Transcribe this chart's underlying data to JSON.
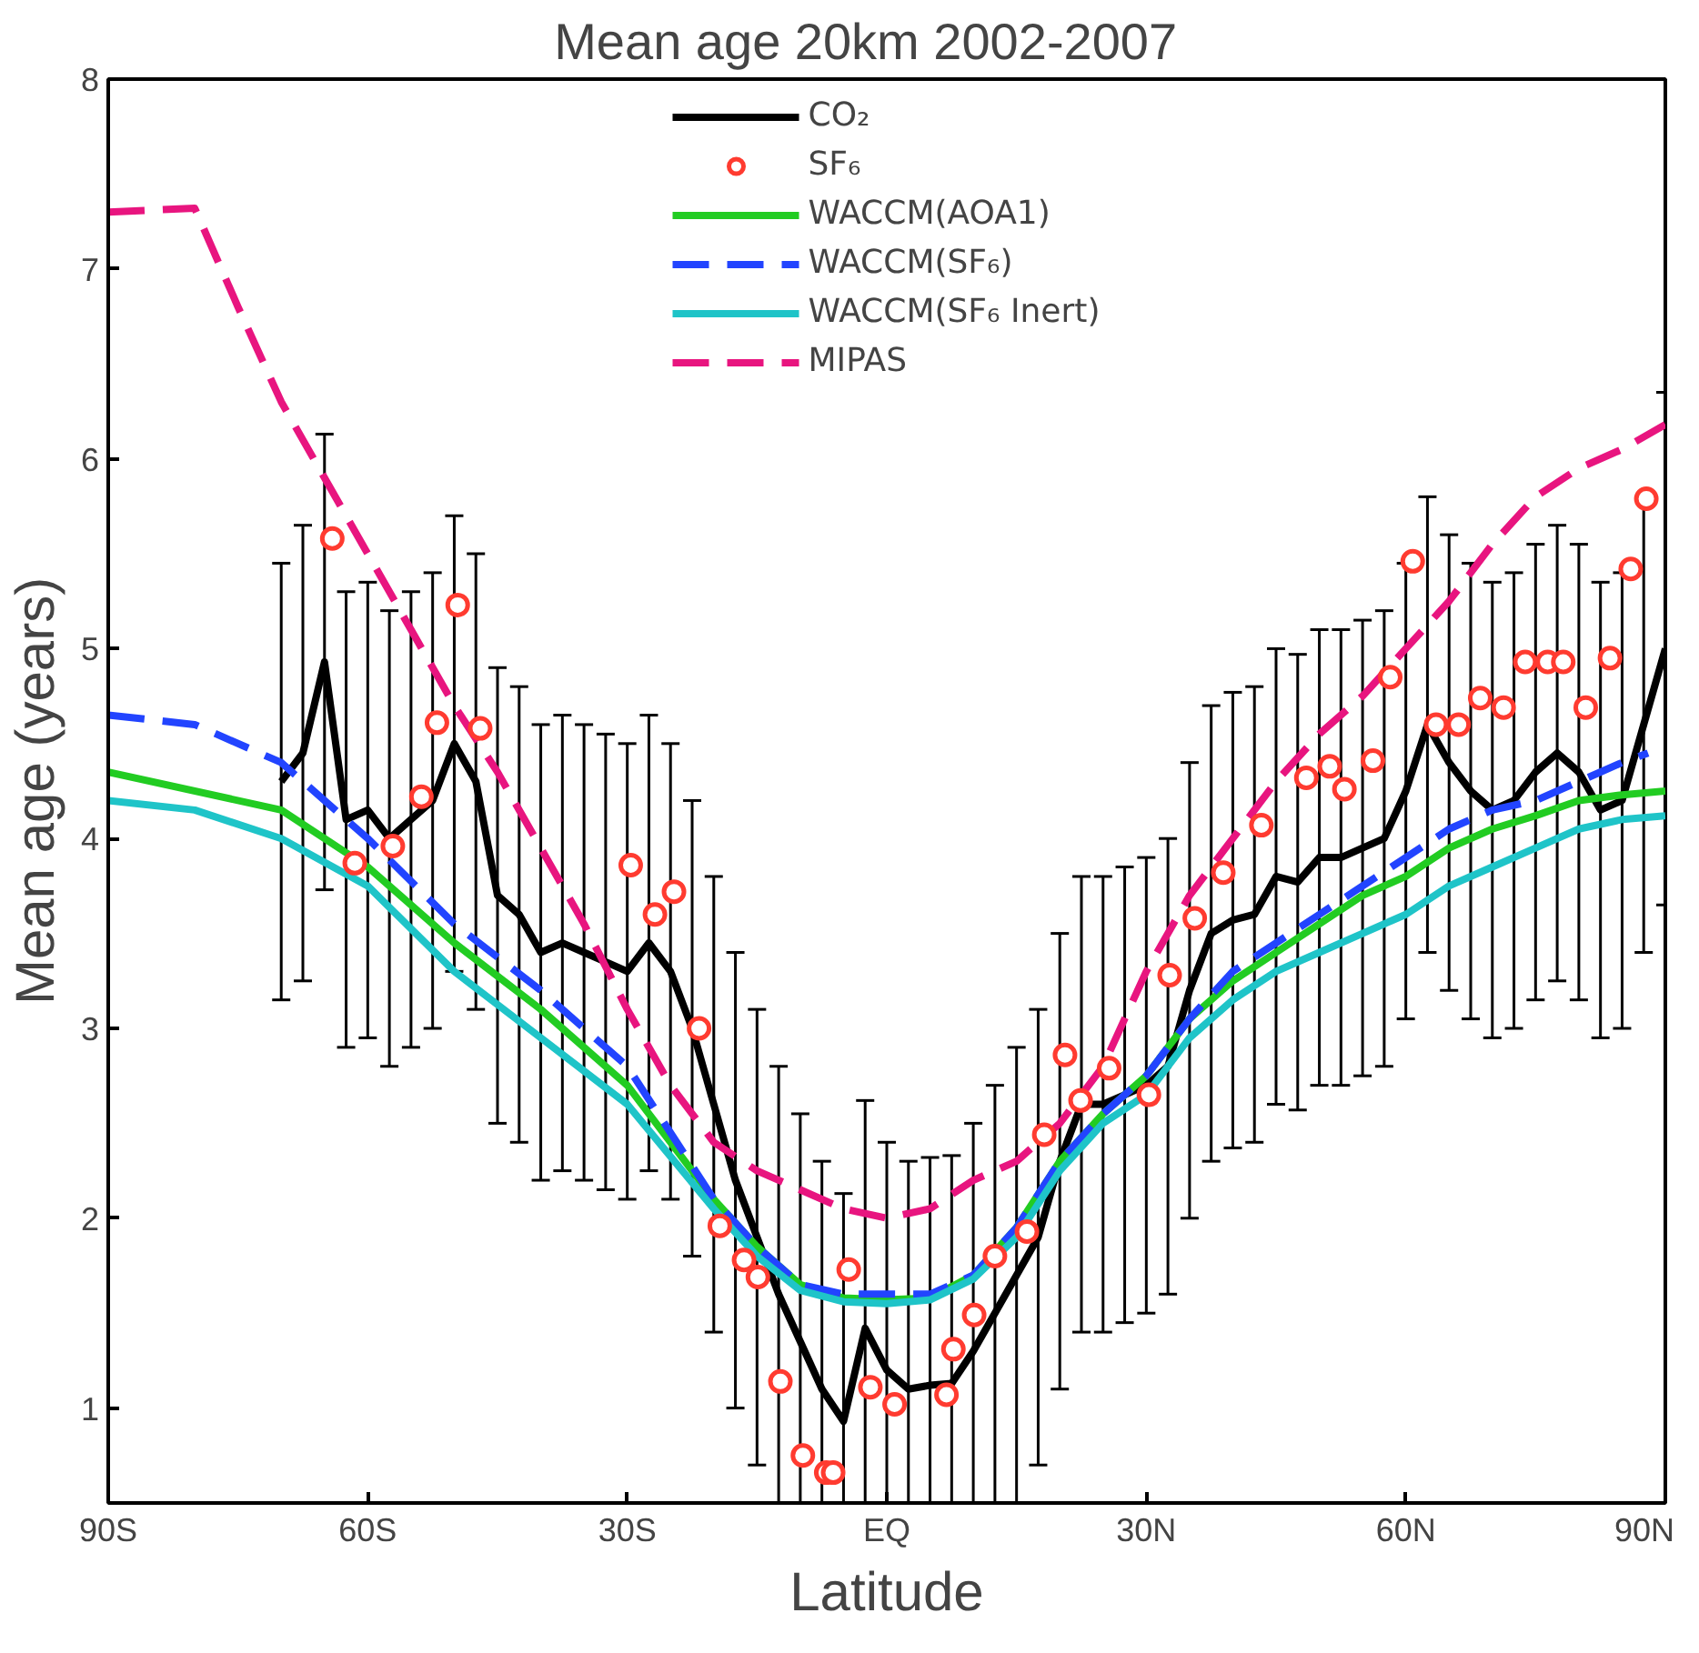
{
  "chart_data": {
    "type": "line",
    "title": "Mean age   20km  2002-2007",
    "xlabel": "Latitude",
    "ylabel": "Mean age (years)",
    "xlim": [
      -90,
      90
    ],
    "xticks": [
      {
        "value": -90,
        "label": "90S"
      },
      {
        "value": -60,
        "label": "60S"
      },
      {
        "value": -30,
        "label": "30S"
      },
      {
        "value": 0,
        "label": "EQ"
      },
      {
        "value": 30,
        "label": "30N"
      },
      {
        "value": 60,
        "label": "60N"
      },
      {
        "value": 90,
        "label": "90N"
      }
    ],
    "ylim": [
      0.5,
      8
    ],
    "yticks": [
      1,
      2,
      3,
      4,
      5,
      6,
      7,
      8
    ],
    "grid": false,
    "legend": "top",
    "series": [
      {
        "name": "CO₂",
        "color": "#000000",
        "line_style": "solid",
        "marker": "none",
        "x": [
          -70,
          -67.5,
          -65,
          -62.5,
          -60,
          -57.5,
          -55,
          -52.5,
          -50,
          -47.5,
          -45,
          -42.5,
          -40,
          -37.5,
          -35,
          -32.5,
          -30,
          -27.5,
          -25,
          -22.5,
          -20,
          -17.5,
          -15,
          -12.5,
          -10,
          -7.5,
          -5,
          -2.5,
          0,
          2.5,
          5,
          7.5,
          10,
          12.5,
          15,
          17.5,
          20,
          22.5,
          25,
          27.5,
          30,
          32.5,
          35,
          37.5,
          40,
          42.5,
          45,
          47.5,
          50,
          52.5,
          55,
          57.5,
          60,
          62.5,
          65,
          67.5,
          70,
          72.5,
          75,
          77.5,
          80,
          82.5,
          85,
          87.5,
          90
        ],
        "values": [
          4.3,
          4.45,
          4.93,
          4.1,
          4.15,
          4.0,
          4.1,
          4.2,
          4.5,
          4.3,
          3.7,
          3.6,
          3.4,
          3.45,
          3.4,
          3.35,
          3.3,
          3.45,
          3.3,
          3.0,
          2.6,
          2.2,
          1.9,
          1.6,
          1.35,
          1.1,
          0.93,
          1.42,
          1.2,
          1.1,
          1.12,
          1.13,
          1.3,
          1.5,
          1.7,
          1.9,
          2.3,
          2.6,
          2.6,
          2.65,
          2.7,
          2.8,
          3.2,
          3.5,
          3.57,
          3.6,
          3.8,
          3.77,
          3.9,
          3.9,
          3.95,
          4.0,
          4.25,
          4.6,
          4.4,
          4.25,
          4.15,
          4.2,
          4.35,
          4.45,
          4.35,
          4.15,
          4.2,
          4.6,
          5.0
        ],
        "errors": [
          1.15,
          1.2,
          1.2,
          1.2,
          1.2,
          1.2,
          1.2,
          1.2,
          1.2,
          1.2,
          1.2,
          1.2,
          1.2,
          1.2,
          1.2,
          1.2,
          1.2,
          1.2,
          1.2,
          1.2,
          1.2,
          1.2,
          1.2,
          [
            0.5,
            2.8
          ],
          [
            0.5,
            2.55
          ],
          [
            0.5,
            2.3
          ],
          [
            0.5,
            2.13
          ],
          [
            0.5,
            2.62
          ],
          [
            0.5,
            2.4
          ],
          [
            0.5,
            2.3
          ],
          [
            0.5,
            2.32
          ],
          [
            0.5,
            2.33
          ],
          [
            0.5,
            2.5
          ],
          [
            0.5,
            2.7
          ],
          1.2,
          1.2,
          1.2,
          1.2,
          1.2,
          1.2,
          1.2,
          1.2,
          1.2,
          1.2,
          1.2,
          1.2,
          1.2,
          1.2,
          1.2,
          1.2,
          1.2,
          1.2,
          1.2,
          1.2,
          1.2,
          1.2,
          1.2,
          1.2,
          1.2,
          1.2,
          1.2,
          1.2,
          1.2,
          1.2,
          1.35
        ]
      },
      {
        "name": "SF₆",
        "type": "scatter",
        "color": "#ff3b30",
        "marker": "circle",
        "x": [
          -64.1,
          -61.5,
          -57.1,
          -53.8,
          -52.0,
          -49.6,
          -47.0,
          -29.6,
          -26.8,
          -24.6,
          -21.7,
          -19.3,
          -16.5,
          -14.9,
          -12.3,
          -9.7,
          -7.0,
          -6.2,
          -4.4,
          -1.9,
          0.9,
          6.9,
          7.7,
          10.1,
          12.5,
          16.2,
          18.2,
          20.6,
          22.4,
          25.7,
          30.3,
          32.7,
          35.6,
          38.9,
          43.3,
          48.5,
          51.2,
          52.9,
          56.2,
          58.2,
          60.8,
          63.5,
          66.1,
          68.6,
          71.3,
          73.8,
          76.4,
          78.2,
          80.8,
          83.6,
          86.0,
          87.8
        ],
        "values": [
          5.58,
          3.87,
          3.96,
          4.22,
          4.61,
          5.23,
          4.58,
          3.86,
          3.6,
          3.72,
          3.0,
          1.96,
          1.78,
          1.69,
          1.14,
          0.75,
          0.66,
          0.66,
          1.73,
          1.11,
          1.02,
          1.07,
          1.31,
          1.49,
          1.8,
          1.93,
          2.44,
          2.86,
          2.62,
          2.79,
          2.65,
          3.28,
          3.58,
          3.82,
          4.07,
          4.32,
          4.38,
          4.26,
          4.41,
          4.85,
          5.46,
          4.6,
          4.6,
          4.74,
          4.69,
          4.93,
          4.93,
          4.93,
          4.69,
          4.95,
          5.42,
          5.79
        ]
      },
      {
        "name": "WACCM(AOA1)",
        "color": "#22cc22",
        "line_style": "solid",
        "marker": "none",
        "x": [
          -90,
          -70,
          -60,
          -50,
          -40,
          -30,
          -20,
          -15,
          -10,
          -5,
          0,
          5,
          10,
          15,
          20,
          25,
          30,
          35,
          40,
          45,
          50,
          55,
          60,
          65,
          70,
          75,
          80,
          85,
          90
        ],
        "values": [
          4.35,
          4.15,
          3.85,
          3.45,
          3.1,
          2.7,
          2.1,
          1.85,
          1.65,
          1.58,
          1.57,
          1.58,
          1.7,
          1.95,
          2.3,
          2.55,
          2.75,
          3.05,
          3.25,
          3.4,
          3.55,
          3.7,
          3.8,
          3.95,
          4.05,
          4.12,
          4.2,
          4.23,
          4.25
        ]
      },
      {
        "name": "WACCM(SF₆)",
        "color": "#2244ff",
        "line_style": "dashed",
        "marker": "none",
        "x": [
          -90,
          -80,
          -70,
          -60,
          -50,
          -40,
          -30,
          -20,
          -15,
          -10,
          -5,
          0,
          5,
          10,
          15,
          20,
          25,
          30,
          35,
          40,
          45,
          50,
          55,
          60,
          65,
          70,
          75,
          80,
          85,
          88
        ],
        "values": [
          4.65,
          4.6,
          4.4,
          4.0,
          3.55,
          3.2,
          2.8,
          2.1,
          1.85,
          1.65,
          1.6,
          1.6,
          1.6,
          1.7,
          1.95,
          2.3,
          2.55,
          2.75,
          3.05,
          3.3,
          3.45,
          3.6,
          3.75,
          3.9,
          4.05,
          4.15,
          4.2,
          4.3,
          4.4,
          4.45
        ]
      },
      {
        "name": "WACCM(SF₆ Inert)",
        "color": "#1fc4c8",
        "line_style": "solid",
        "marker": "none",
        "x": [
          -90,
          -80,
          -70,
          -60,
          -50,
          -40,
          -30,
          -20,
          -15,
          -10,
          -5,
          0,
          5,
          10,
          15,
          20,
          25,
          30,
          35,
          40,
          45,
          50,
          55,
          60,
          65,
          70,
          75,
          80,
          85,
          90
        ],
        "values": [
          4.2,
          4.15,
          4.0,
          3.75,
          3.3,
          2.95,
          2.6,
          2.05,
          1.8,
          1.62,
          1.56,
          1.55,
          1.57,
          1.68,
          1.9,
          2.25,
          2.5,
          2.65,
          2.95,
          3.15,
          3.3,
          3.4,
          3.5,
          3.6,
          3.75,
          3.85,
          3.95,
          4.05,
          4.1,
          4.12
        ]
      },
      {
        "name": "MIPAS",
        "color": "#e8157f",
        "line_style": "dashed",
        "marker": "none",
        "x": [
          -90,
          -80,
          -75,
          -70,
          -65,
          -60,
          -55,
          -50,
          -45,
          -40,
          -35,
          -30,
          -25,
          -20,
          -15,
          -10,
          -5,
          0,
          5,
          10,
          15,
          20,
          25,
          30,
          35,
          40,
          45,
          50,
          55,
          60,
          65,
          70,
          75,
          80,
          85,
          90
        ],
        "values": [
          7.3,
          7.32,
          6.8,
          6.3,
          5.9,
          5.5,
          5.1,
          4.7,
          4.35,
          3.95,
          3.55,
          3.1,
          2.7,
          2.4,
          2.25,
          2.15,
          2.05,
          2.0,
          2.05,
          2.2,
          2.3,
          2.5,
          2.8,
          3.3,
          3.7,
          4.0,
          4.3,
          4.55,
          4.75,
          5.0,
          5.25,
          5.55,
          5.8,
          5.95,
          6.05,
          6.18
        ]
      }
    ]
  }
}
